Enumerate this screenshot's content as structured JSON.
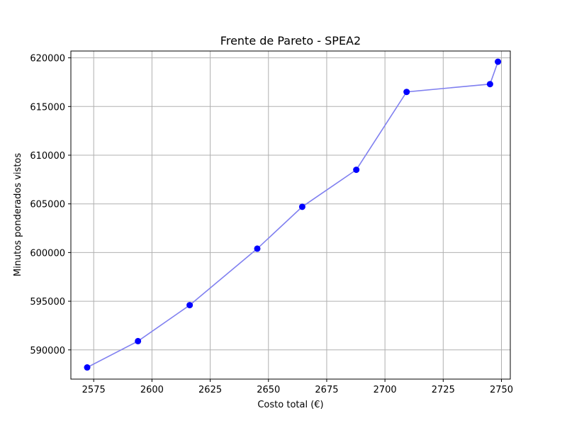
{
  "chart_data": {
    "type": "line",
    "title": "Frente de Pareto - SPEA2",
    "xlabel": "Costo total (€)",
    "ylabel": "Minutos ponderados vistos",
    "xlim": [
      2565.2,
      2753.8
    ],
    "ylim": [
      587000,
      620700
    ],
    "x_ticks": [
      2575,
      2600,
      2625,
      2650,
      2675,
      2700,
      2725,
      2750
    ],
    "x_tick_labels": [
      "2575",
      "2600",
      "2625",
      "2650",
      "2675",
      "2700",
      "2725",
      "2750"
    ],
    "y_ticks": [
      590000,
      595000,
      600000,
      605000,
      610000,
      615000,
      620000
    ],
    "y_tick_labels": [
      "590000",
      "595000",
      "600000",
      "605000",
      "610000",
      "615000",
      "620000"
    ],
    "grid": true,
    "line_color": "#8080f0",
    "marker_color": "#0000ff",
    "series": [
      {
        "x": [
          2572.2,
          2594.0,
          2616.2,
          2645.2,
          2664.5,
          2687.7,
          2709.3,
          2745.1,
          2748.5
        ],
        "y": [
          588200,
          590900,
          594600,
          600400,
          604700,
          608500,
          616500,
          617300,
          619600
        ]
      }
    ]
  }
}
